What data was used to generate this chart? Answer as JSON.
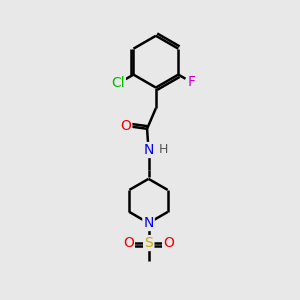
{
  "background_color": "#e8e8e8",
  "atom_colors": {
    "C": "#000000",
    "H": "#555555",
    "N": "#0000ee",
    "O": "#ee0000",
    "S": "#ccaa00",
    "Cl": "#00bb00",
    "F": "#cc00cc"
  },
  "bond_color": "#000000",
  "bond_width": 1.8,
  "font_size_atoms": 10,
  "font_size_H": 9
}
